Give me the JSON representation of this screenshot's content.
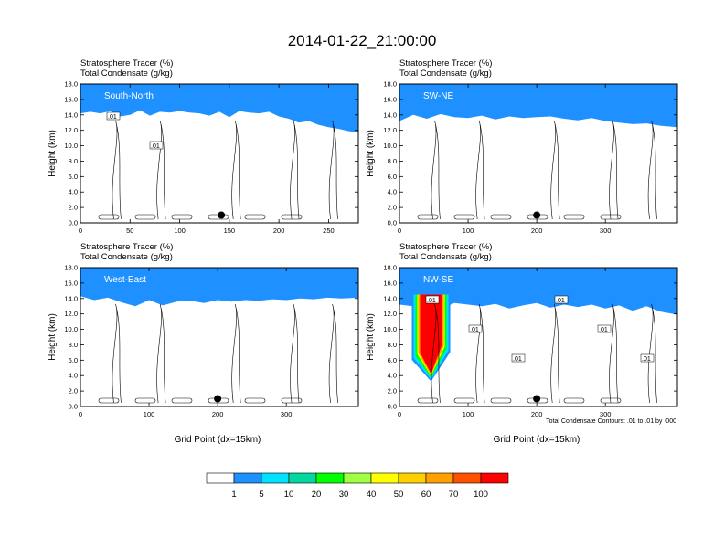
{
  "title": "2014-01-22_21:00:00",
  "x_label": "Grid Point (dx=15km)",
  "y_label": "Height (km)",
  "footnote": "Total Condensate Contours: .01 to .01 by .000",
  "colorbar": {
    "labels": [
      "1",
      "5",
      "10",
      "20",
      "30",
      "40",
      "50",
      "60",
      "70",
      "100"
    ],
    "colors": [
      "#ffffff",
      "#1e90ff",
      "#00e0ff",
      "#00d8a0",
      "#00ff00",
      "#a0ff40",
      "#ffff00",
      "#ffd000",
      "#ffa000",
      "#ff5000",
      "#ff0000"
    ]
  },
  "chart_data": [
    {
      "type": "heatmap",
      "name": "South-North",
      "subtitle_1": "Stratosphere Tracer   (%)",
      "subtitle_2": "Total Condensate   (g/kg)",
      "xlim": [
        0,
        280
      ],
      "ylim": [
        0,
        18
      ],
      "x_ticks": [
        "0",
        "50",
        "100",
        "150",
        "200",
        "250"
      ],
      "x_tick_values": [
        0,
        50,
        100,
        150,
        200,
        250
      ],
      "y_ticks": [
        "0.0",
        "2.0",
        "4.0",
        "6.0",
        "8.0",
        "10.0",
        "12.0",
        "14.0",
        "16.0",
        "18.0"
      ],
      "contour_labels": [
        ".01",
        ".01"
      ],
      "marker": {
        "x": 142,
        "y": 1.0
      },
      "tropopause_km": [
        [
          0,
          15.0
        ],
        [
          10,
          15.2
        ],
        [
          20,
          15.0
        ],
        [
          30,
          15.3
        ],
        [
          40,
          14.6
        ],
        [
          50,
          14.8
        ],
        [
          60,
          15.4
        ],
        [
          70,
          14.7
        ],
        [
          80,
          15.2
        ],
        [
          90,
          15.1
        ],
        [
          100,
          15.3
        ],
        [
          110,
          15.1
        ],
        [
          120,
          15.0
        ],
        [
          130,
          14.7
        ],
        [
          140,
          15.2
        ],
        [
          150,
          14.5
        ],
        [
          160,
          15.3
        ],
        [
          170,
          15.1
        ],
        [
          180,
          15.0
        ],
        [
          190,
          15.2
        ],
        [
          200,
          14.6
        ],
        [
          210,
          14.3
        ],
        [
          220,
          13.8
        ],
        [
          230,
          14.0
        ],
        [
          240,
          13.5
        ],
        [
          250,
          13.2
        ],
        [
          260,
          13.0
        ],
        [
          270,
          12.7
        ],
        [
          280,
          12.5
        ]
      ]
    },
    {
      "type": "heatmap",
      "name": "SW-NE",
      "subtitle_1": "Stratosphere Tracer   (%)",
      "subtitle_2": "Total Condensate   (g/kg)",
      "xlim": [
        0,
        405
      ],
      "ylim": [
        0,
        18
      ],
      "x_ticks": [
        "0",
        "100",
        "200",
        "300"
      ],
      "x_tick_values": [
        0,
        100,
        200,
        300
      ],
      "y_ticks": [
        "0.0",
        "2.0",
        "4.0",
        "6.0",
        "8.0",
        "10.0",
        "12.0",
        "14.0",
        "16.0",
        "18.0"
      ],
      "contour_labels": [],
      "marker": {
        "x": 200,
        "y": 1.0
      },
      "tropopause_km": [
        [
          0,
          14.0
        ],
        [
          20,
          14.8
        ],
        [
          40,
          14.3
        ],
        [
          60,
          14.9
        ],
        [
          80,
          14.5
        ],
        [
          100,
          14.4
        ],
        [
          120,
          14.7
        ],
        [
          140,
          14.2
        ],
        [
          160,
          14.6
        ],
        [
          180,
          14.4
        ],
        [
          200,
          14.5
        ],
        [
          220,
          14.6
        ],
        [
          240,
          14.3
        ],
        [
          260,
          14.1
        ],
        [
          280,
          14.4
        ],
        [
          300,
          14.0
        ],
        [
          320,
          13.8
        ],
        [
          340,
          13.6
        ],
        [
          360,
          13.7
        ],
        [
          380,
          13.4
        ],
        [
          405,
          13.2
        ]
      ]
    },
    {
      "type": "heatmap",
      "name": "West-East",
      "subtitle_1": "Stratosphere Tracer   (%)",
      "subtitle_2": "Total Condensate   (g/kg)",
      "xlim": [
        0,
        405
      ],
      "ylim": [
        0,
        18
      ],
      "x_ticks": [
        "0",
        "100",
        "200",
        "300"
      ],
      "x_tick_values": [
        0,
        100,
        200,
        300
      ],
      "y_ticks": [
        "0.0",
        "2.0",
        "4.0",
        "6.0",
        "8.0",
        "10.0",
        "12.0",
        "14.0",
        "16.0",
        "18.0"
      ],
      "contour_labels": [],
      "marker": {
        "x": 200,
        "y": 1.0
      },
      "tropopause_km": [
        [
          0,
          15.1
        ],
        [
          20,
          14.6
        ],
        [
          40,
          14.9
        ],
        [
          60,
          14.3
        ],
        [
          80,
          13.8
        ],
        [
          100,
          14.6
        ],
        [
          120,
          13.9
        ],
        [
          140,
          14.4
        ],
        [
          160,
          14.5
        ],
        [
          180,
          14.2
        ],
        [
          200,
          14.6
        ],
        [
          220,
          14.4
        ],
        [
          240,
          14.6
        ],
        [
          260,
          14.5
        ],
        [
          280,
          14.7
        ],
        [
          300,
          14.6
        ],
        [
          320,
          14.8
        ],
        [
          340,
          14.7
        ],
        [
          360,
          14.9
        ],
        [
          380,
          14.8
        ],
        [
          405,
          14.9
        ]
      ]
    },
    {
      "type": "heatmap",
      "name": "NW-SE",
      "subtitle_1": "Stratosphere Tracer   (%)",
      "subtitle_2": "Total Condensate   (g/kg)",
      "xlim": [
        0,
        405
      ],
      "ylim": [
        0,
        18
      ],
      "x_ticks": [
        "0",
        "100",
        "200",
        "300"
      ],
      "x_tick_values": [
        0,
        100,
        200,
        300
      ],
      "y_ticks": [
        "0.0",
        "2.0",
        "4.0",
        "6.0",
        "8.0",
        "10.0",
        "12.0",
        "14.0",
        "16.0",
        "18.0"
      ],
      "contour_labels": [
        ".01",
        ".01",
        ".01",
        ".01",
        ".01",
        ".01"
      ],
      "marker": {
        "x": 200,
        "y": 1.0
      },
      "intrusion": {
        "x_left": 30,
        "x_right": 62,
        "bottom_km": 4.2
      },
      "tropopause_km": [
        [
          0,
          14.0
        ],
        [
          20,
          13.8
        ],
        [
          30,
          13.5
        ],
        [
          62,
          13.5
        ],
        [
          80,
          14.2
        ],
        [
          100,
          14.0
        ],
        [
          120,
          13.8
        ],
        [
          140,
          14.1
        ],
        [
          160,
          13.5
        ],
        [
          180,
          13.9
        ],
        [
          200,
          14.2
        ],
        [
          220,
          13.6
        ],
        [
          240,
          14.0
        ],
        [
          260,
          13.7
        ],
        [
          280,
          14.0
        ],
        [
          300,
          13.5
        ],
        [
          320,
          13.9
        ],
        [
          340,
          13.2
        ],
        [
          360,
          13.8
        ],
        [
          380,
          13.1
        ],
        [
          405,
          12.7
        ]
      ]
    }
  ]
}
